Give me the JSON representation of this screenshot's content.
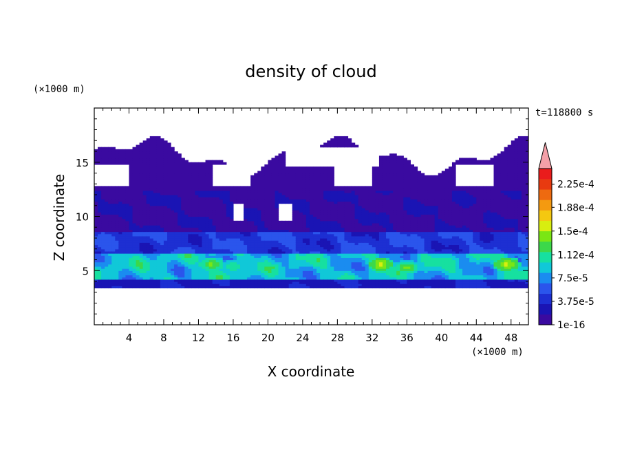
{
  "chart_data": {
    "type": "heatmap",
    "title": "density of cloud",
    "xlabel": "X coordinate",
    "ylabel": "Z coordinate",
    "x_unit": "(×1000 m)",
    "y_unit": "(×1000 m)",
    "time_label": "t=118800 s",
    "xlim": [
      0,
      50
    ],
    "ylim": [
      0,
      20
    ],
    "x_ticks": [
      4,
      8,
      12,
      16,
      20,
      24,
      28,
      32,
      36,
      40,
      44,
      48
    ],
    "y_ticks": [
      5,
      10,
      15
    ],
    "colorbar": {
      "labels": [
        "1e-16",
        "3.75e-5",
        "7.5e-5",
        "1.12e-4",
        "1.5e-4",
        "1.88e-4",
        "2.25e-4"
      ],
      "label_values": [
        0,
        3.75e-05,
        7.5e-05,
        0.000112,
        0.00015,
        0.000188,
        0.000225
      ],
      "colors": [
        "#3a0aa0",
        "#1a14b4",
        "#1d2fd2",
        "#2a55ec",
        "#1a8cf0",
        "#10c8d8",
        "#16e0a0",
        "#3cd84a",
        "#7ae614",
        "#d8ee10",
        "#f4c810",
        "#f49a10",
        "#ee6a10",
        "#e83a10",
        "#ea1c1c"
      ],
      "extend_color": "#f4a0a8",
      "vmin": 0,
      "vmax": 0.00025
    },
    "field": {
      "description_bands": [
        {
          "z_range": [
            3.4,
            4.2
          ],
          "level": 2
        },
        {
          "z_range": [
            4.2,
            6.5
          ],
          "level": 6
        },
        {
          "z_range": [
            6.5,
            8.5
          ],
          "level": 2
        },
        {
          "z_range": [
            8.5,
            13.5
          ],
          "level": 0
        },
        {
          "z_range": [
            13.5,
            17.2
          ],
          "level": 0
        }
      ],
      "peaks": [
        {
          "x": 13.5,
          "z": 5.6,
          "level": 8
        },
        {
          "x": 16.0,
          "z": 5.4,
          "level": 7
        },
        {
          "x": 20.5,
          "z": 5.3,
          "level": 7
        },
        {
          "x": 33.0,
          "z": 5.6,
          "level": 9
        },
        {
          "x": 36.0,
          "z": 5.3,
          "level": 8
        },
        {
          "x": 47.5,
          "z": 5.6,
          "level": 9
        }
      ]
    }
  }
}
